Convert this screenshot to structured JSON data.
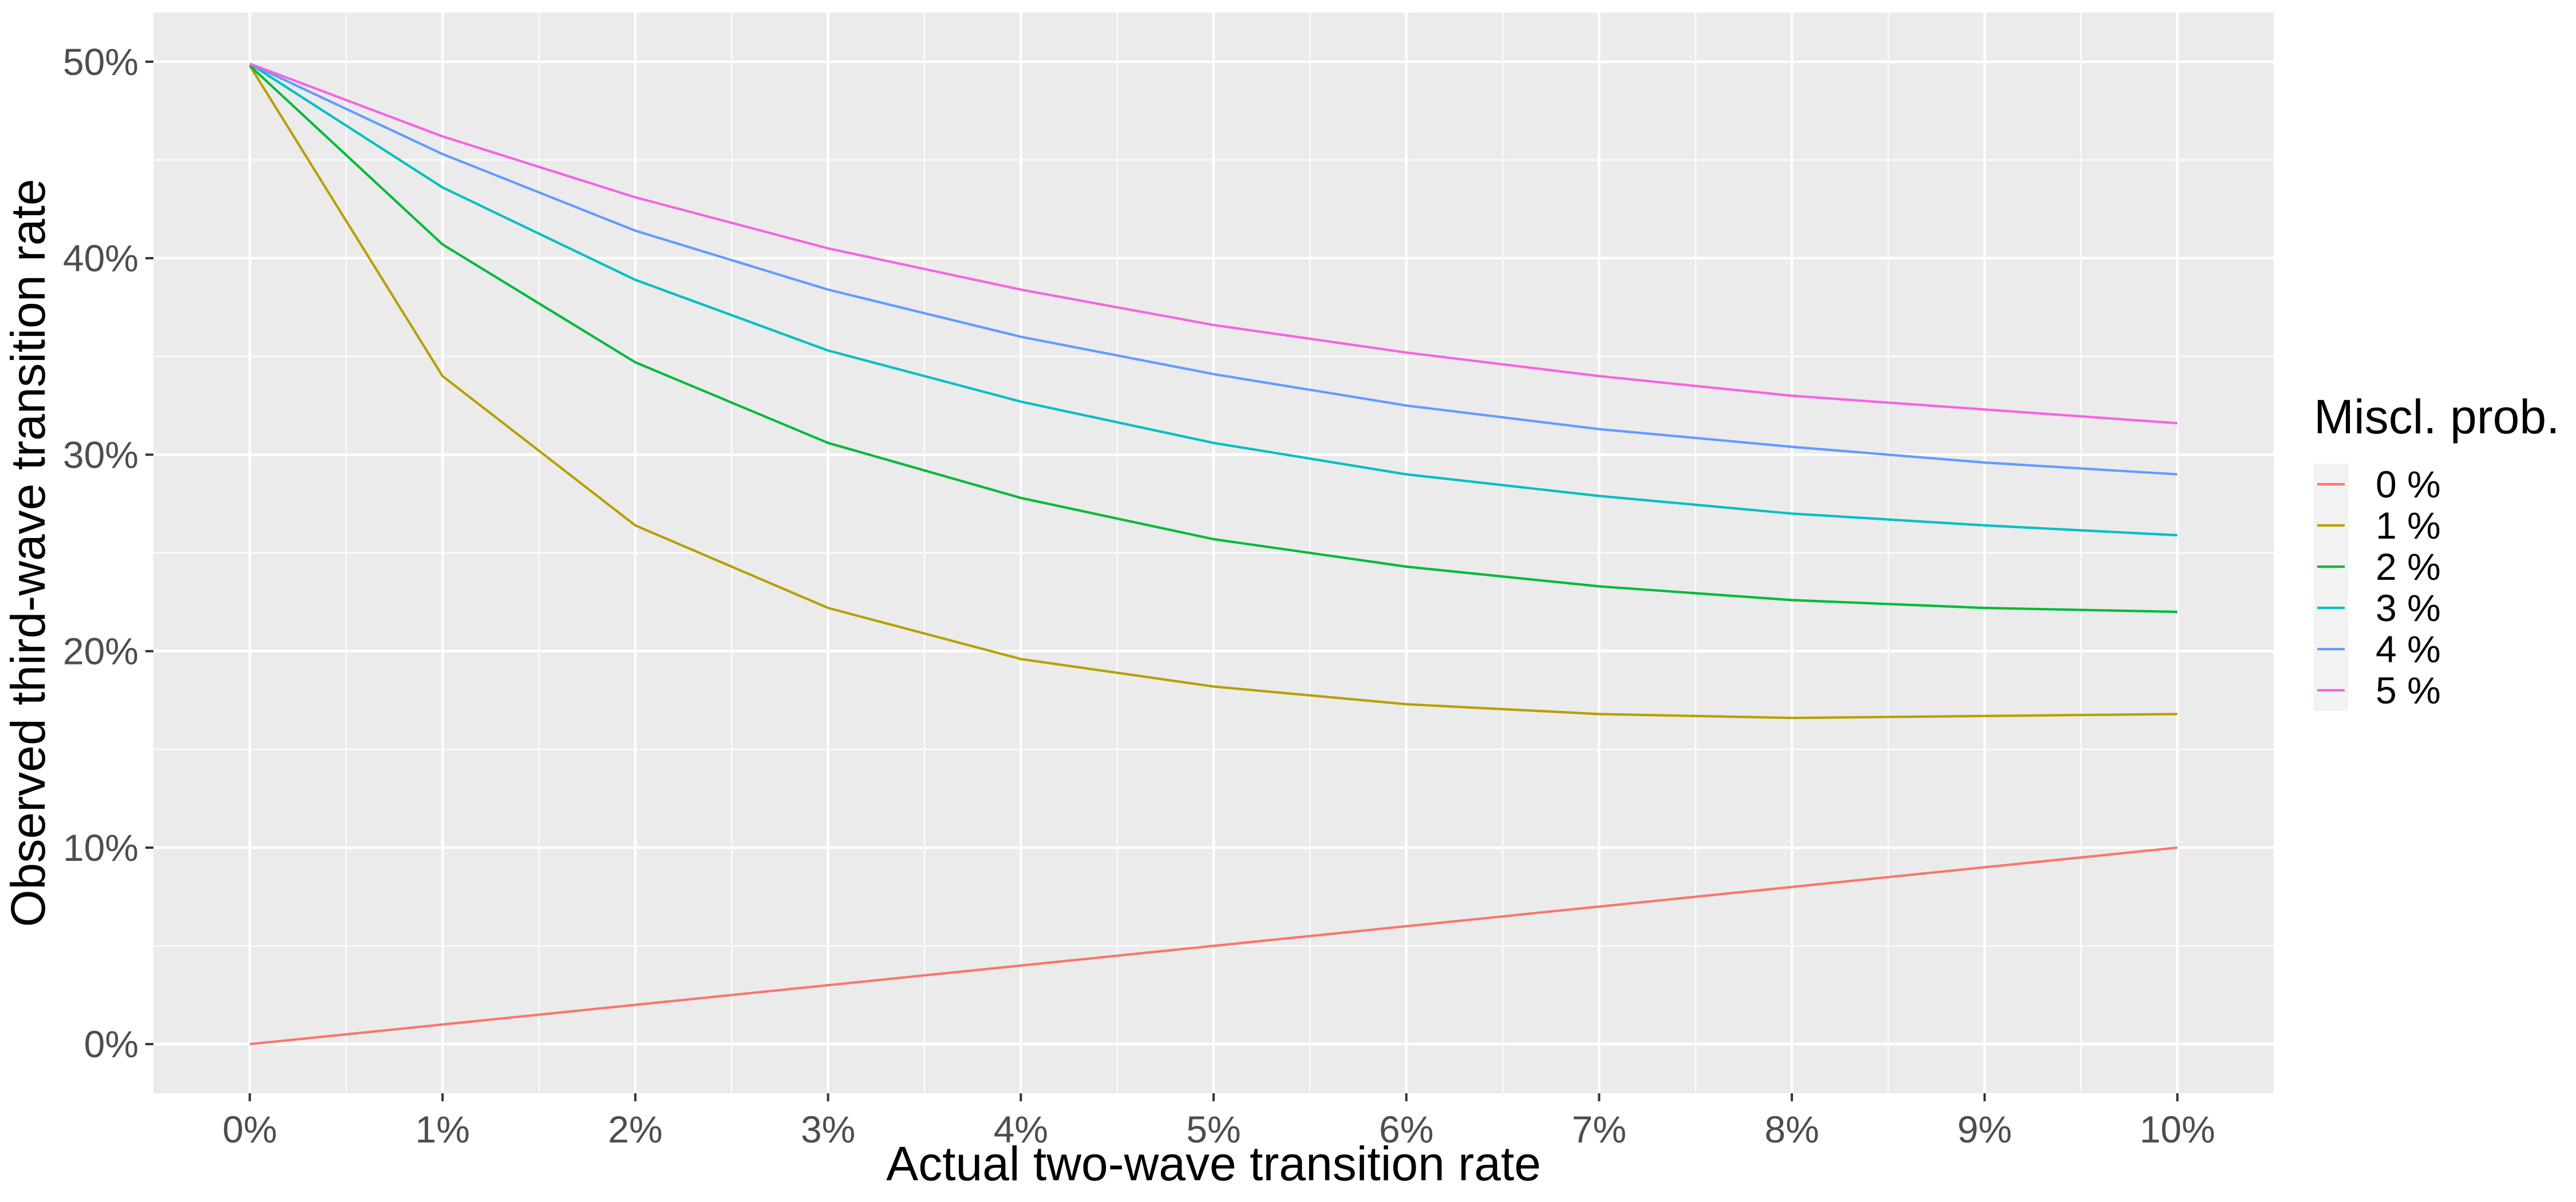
{
  "chart_data": {
    "type": "line",
    "xlabel": "Actual two-wave transition rate",
    "ylabel": "Observed third-wave transition rate",
    "x": [
      0,
      1,
      2,
      3,
      4,
      5,
      6,
      7,
      8,
      9,
      10
    ],
    "x_tick_labels": [
      "0%",
      "1%",
      "2%",
      "3%",
      "4%",
      "5%",
      "6%",
      "7%",
      "8%",
      "9%",
      "10%"
    ],
    "xlim": [
      -0.5,
      10.5
    ],
    "y_ticks": [
      0,
      10,
      20,
      30,
      40,
      50
    ],
    "y_tick_labels": [
      "0%",
      "10%",
      "20%",
      "30%",
      "40%",
      "50%"
    ],
    "ylim": [
      -2.5,
      52.5
    ],
    "grid": true,
    "panel_background": "#ebebeb",
    "legend": {
      "title": "Miscl. prob.",
      "position": "right"
    },
    "series": [
      {
        "name": "0 %",
        "color": "#F8766D",
        "values": [
          0,
          1,
          2,
          3,
          4,
          5,
          6,
          7,
          8,
          9,
          10
        ]
      },
      {
        "name": "1 %",
        "color": "#B79F00",
        "values": [
          49.8,
          34.0,
          26.4,
          22.2,
          19.6,
          18.2,
          17.3,
          16.8,
          16.6,
          16.7,
          16.8
        ]
      },
      {
        "name": "2 %",
        "color": "#00BA38",
        "values": [
          49.8,
          40.7,
          34.7,
          30.6,
          27.8,
          25.7,
          24.3,
          23.3,
          22.6,
          22.2,
          22.0
        ]
      },
      {
        "name": "3 %",
        "color": "#00BFC4",
        "values": [
          49.9,
          43.6,
          38.9,
          35.3,
          32.7,
          30.6,
          29.0,
          27.9,
          27.0,
          26.4,
          25.9
        ]
      },
      {
        "name": "4 %",
        "color": "#619CFF",
        "values": [
          49.9,
          45.3,
          41.4,
          38.4,
          36.0,
          34.1,
          32.5,
          31.3,
          30.4,
          29.6,
          29.0
        ]
      },
      {
        "name": "5 %",
        "color": "#F564E3",
        "values": [
          49.9,
          46.2,
          43.1,
          40.5,
          38.4,
          36.6,
          35.2,
          34.0,
          33.0,
          32.3,
          31.6
        ]
      }
    ]
  }
}
